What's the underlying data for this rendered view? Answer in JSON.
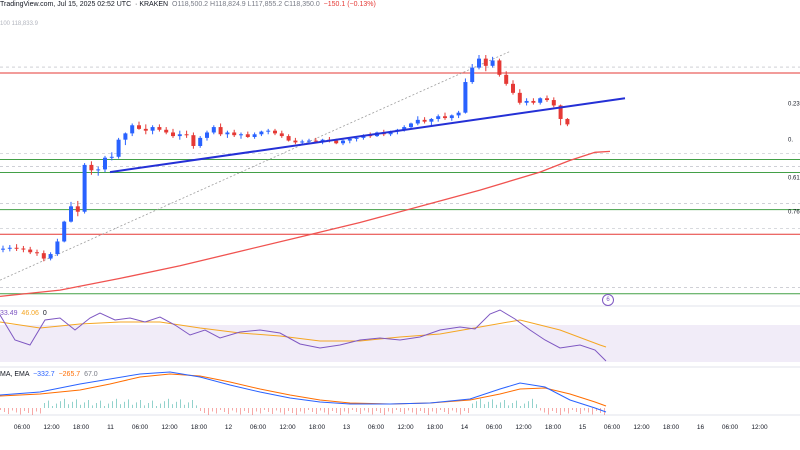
{
  "header": {
    "source": "TradingView.com, Jul 15, 2025 02:52 UTC",
    "exchange": "KRAKEN",
    "ohlc": "O118,500.2  H118,824.9  L117,855.2  C118,350.0",
    "change": "−150.1 (−0.13%)",
    "watermark": "100  118,833.9"
  },
  "rsi_header": {
    "values": [
      "33.49",
      "46.06"
    ],
    "flag": "0"
  },
  "macd_header": {
    "label": "MA, EMA",
    "values": [
      "−332.7",
      "−265.7",
      "67.0"
    ]
  },
  "fib_labels": [
    "0.23",
    "0.",
    "0.61",
    "0.76"
  ],
  "event_icon_label": "6",
  "colors": {
    "up": "#2962ff",
    "down": "#e53935",
    "trendline": "#2430d6",
    "ma": "#f05350",
    "rsi": "#7e57c2",
    "rsi_signal": "#f5a623",
    "macd": "#2962ff",
    "signal": "#ff6d00",
    "fib_green": "#43a047",
    "fib_red": "#e53935"
  },
  "chart_data": {
    "type": "candlestick",
    "time_labels": [
      "06:00",
      "12:00",
      "18:00",
      "11",
      "06:00",
      "12:00",
      "18:00",
      "12",
      "06:00",
      "12:00",
      "18:00",
      "13",
      "06:00",
      "12:00",
      "18:00",
      "14",
      "06:00",
      "12:00",
      "18:00",
      "15",
      "06:00",
      "12:00",
      "18:00",
      "16",
      "06:00",
      "12:00"
    ],
    "ylim": [
      109500,
      124600
    ],
    "fib_levels": [
      {
        "price": 122100,
        "color": "red"
      },
      {
        "price": 117300,
        "color": "green"
      },
      {
        "price": 116580,
        "color": "green"
      },
      {
        "price": 114520,
        "color": "green"
      },
      {
        "price": 113150,
        "color": "red"
      },
      {
        "price": 109850,
        "color": "green"
      }
    ],
    "candles": [
      [
        112320,
        112520,
        112150,
        112350
      ],
      [
        112350,
        112550,
        112200,
        112400
      ],
      [
        112400,
        112600,
        112220,
        112360
      ],
      [
        112360,
        112500,
        112150,
        112300
      ],
      [
        112300,
        112450,
        112050,
        112150
      ],
      [
        112150,
        112300,
        111950,
        112100
      ],
      [
        112100,
        112250,
        111650,
        111800
      ],
      [
        111800,
        112150,
        111700,
        112050
      ],
      [
        112050,
        112900,
        111950,
        112750
      ],
      [
        112750,
        113900,
        112700,
        113850
      ],
      [
        113850,
        114950,
        113800,
        114700
      ],
      [
        114700,
        115000,
        114150,
        114400
      ],
      [
        114400,
        117100,
        114300,
        117000
      ],
      [
        117000,
        117200,
        116450,
        116700
      ],
      [
        116700,
        116900,
        116400,
        116750
      ],
      [
        116750,
        117500,
        116600,
        117400
      ],
      [
        117400,
        117700,
        117250,
        117450
      ],
      [
        117450,
        118500,
        117350,
        118400
      ],
      [
        118400,
        118800,
        118100,
        118750
      ],
      [
        118750,
        119300,
        118600,
        119200
      ],
      [
        119200,
        119400,
        118950,
        119000
      ],
      [
        119000,
        119250,
        118700,
        118900
      ],
      [
        118900,
        119200,
        118700,
        119100
      ],
      [
        119100,
        119250,
        118850,
        118950
      ],
      [
        118950,
        119100,
        118700,
        118800
      ],
      [
        118800,
        119000,
        118500,
        118600
      ],
      [
        118600,
        118900,
        118400,
        118700
      ],
      [
        118700,
        118900,
        118500,
        118650
      ],
      [
        118650,
        118800,
        117900,
        118050
      ],
      [
        118050,
        118600,
        117950,
        118500
      ],
      [
        118500,
        118900,
        118350,
        118800
      ],
      [
        118800,
        119200,
        118700,
        119100
      ],
      [
        119100,
        119300,
        118600,
        118700
      ],
      [
        118700,
        118900,
        118500,
        118800
      ],
      [
        118800,
        118950,
        118550,
        118650
      ],
      [
        118650,
        118800,
        118450,
        118700
      ],
      [
        118700,
        118850,
        118500,
        118550
      ],
      [
        118550,
        118800,
        118450,
        118700
      ],
      [
        118700,
        118900,
        118600,
        118850
      ],
      [
        118850,
        119000,
        118700,
        118900
      ],
      [
        118900,
        119000,
        118650,
        118750
      ],
      [
        118750,
        118900,
        118500,
        118600
      ],
      [
        118600,
        118700,
        118300,
        118350
      ],
      [
        118350,
        118500,
        118150,
        118250
      ],
      [
        118250,
        118400,
        118100,
        118300
      ],
      [
        118300,
        118450,
        118150,
        118350
      ],
      [
        118350,
        118500,
        118200,
        118300
      ],
      [
        118300,
        118450,
        118150,
        118400
      ],
      [
        118400,
        118550,
        118250,
        118350
      ],
      [
        118350,
        118450,
        118150,
        118200
      ],
      [
        118200,
        118400,
        118100,
        118350
      ],
      [
        118350,
        118500,
        118200,
        118450
      ],
      [
        118450,
        118600,
        118300,
        118500
      ],
      [
        118500,
        118700,
        118400,
        118650
      ],
      [
        118650,
        118800,
        118500,
        118600
      ],
      [
        118600,
        118850,
        118550,
        118800
      ],
      [
        118800,
        118950,
        118600,
        118700
      ],
      [
        118700,
        118900,
        118600,
        118850
      ],
      [
        118850,
        119000,
        118700,
        118950
      ],
      [
        118950,
        119200,
        118850,
        119100
      ],
      [
        119100,
        119350,
        119000,
        119300
      ],
      [
        119300,
        119700,
        119200,
        119500
      ],
      [
        119500,
        119650,
        119300,
        119400
      ],
      [
        119400,
        119600,
        119200,
        119550
      ],
      [
        119550,
        119800,
        119400,
        119700
      ],
      [
        119700,
        119900,
        119500,
        119600
      ],
      [
        119600,
        119800,
        119450,
        119750
      ],
      [
        119750,
        120000,
        119600,
        119900
      ],
      [
        119900,
        121800,
        119850,
        121600
      ],
      [
        121600,
        122600,
        121500,
        122400
      ],
      [
        122400,
        123100,
        122300,
        122900
      ],
      [
        122900,
        123100,
        122200,
        122500
      ],
      [
        122500,
        123000,
        122400,
        122800
      ],
      [
        122800,
        122900,
        121900,
        122000
      ],
      [
        122000,
        122200,
        121400,
        121500
      ],
      [
        121500,
        121700,
        120900,
        121000
      ],
      [
        121000,
        121200,
        120350,
        120450
      ],
      [
        120450,
        120700,
        120300,
        120550
      ],
      [
        120550,
        120700,
        120350,
        120450
      ],
      [
        120450,
        120750,
        120350,
        120700
      ],
      [
        120700,
        120850,
        120500,
        120600
      ],
      [
        120600,
        120750,
        120200,
        120300
      ],
      [
        120300,
        120350,
        119200,
        119550
      ],
      [
        119550,
        119600,
        119150,
        119250
      ]
    ],
    "ma": [
      [
        0,
        109700
      ],
      [
        60,
        110050
      ],
      [
        120,
        110700
      ],
      [
        180,
        111400
      ],
      [
        240,
        112200
      ],
      [
        300,
        113000
      ],
      [
        360,
        113800
      ],
      [
        420,
        114700
      ],
      [
        480,
        115600
      ],
      [
        540,
        116600
      ],
      [
        570,
        117250
      ],
      [
        595,
        117700
      ],
      [
        610,
        117750
      ]
    ],
    "trendline_support": [
      [
        110,
        116600
      ],
      [
        625,
        120700
      ]
    ],
    "trendline_fib": [
      [
        0,
        110600
      ],
      [
        510,
        123300
      ]
    ],
    "rsi": [
      [
        0,
        315
      ],
      [
        15,
        340
      ],
      [
        30,
        345
      ],
      [
        45,
        320
      ],
      [
        60,
        318
      ],
      [
        75,
        330
      ],
      [
        90,
        318
      ],
      [
        100,
        313
      ],
      [
        115,
        320
      ],
      [
        130,
        318
      ],
      [
        145,
        322
      ],
      [
        160,
        317
      ],
      [
        175,
        325
      ],
      [
        190,
        335
      ],
      [
        205,
        330
      ],
      [
        220,
        338
      ],
      [
        240,
        332
      ],
      [
        260,
        330
      ],
      [
        280,
        333
      ],
      [
        300,
        344
      ],
      [
        320,
        348
      ],
      [
        340,
        345
      ],
      [
        360,
        340
      ],
      [
        380,
        338
      ],
      [
        400,
        340
      ],
      [
        420,
        337
      ],
      [
        440,
        330
      ],
      [
        460,
        327
      ],
      [
        475,
        329
      ],
      [
        490,
        314
      ],
      [
        500,
        310
      ],
      [
        515,
        319
      ],
      [
        530,
        330
      ],
      [
        545,
        340
      ],
      [
        560,
        348
      ],
      [
        580,
        345
      ],
      [
        595,
        350
      ],
      [
        606,
        361
      ]
    ],
    "rsi_signal": [
      [
        0,
        322
      ],
      [
        40,
        328
      ],
      [
        80,
        324
      ],
      [
        120,
        322
      ],
      [
        160,
        322
      ],
      [
        200,
        328
      ],
      [
        240,
        333
      ],
      [
        280,
        336
      ],
      [
        320,
        341
      ],
      [
        360,
        341
      ],
      [
        400,
        337
      ],
      [
        440,
        334
      ],
      [
        480,
        327
      ],
      [
        520,
        320
      ],
      [
        560,
        330
      ],
      [
        600,
        345
      ],
      [
        606,
        347
      ]
    ],
    "macd_line": [
      [
        0,
        395
      ],
      [
        40,
        392
      ],
      [
        80,
        384
      ],
      [
        110,
        379
      ],
      [
        140,
        374
      ],
      [
        170,
        372
      ],
      [
        200,
        377
      ],
      [
        230,
        385
      ],
      [
        260,
        392
      ],
      [
        290,
        398
      ],
      [
        320,
        402
      ],
      [
        350,
        404
      ],
      [
        390,
        404
      ],
      [
        430,
        403
      ],
      [
        470,
        399
      ],
      [
        500,
        389
      ],
      [
        520,
        383
      ],
      [
        545,
        387
      ],
      [
        570,
        400
      ],
      [
        595,
        408
      ],
      [
        606,
        412
      ]
    ],
    "macd_signal": [
      [
        0,
        396
      ],
      [
        40,
        394
      ],
      [
        80,
        390
      ],
      [
        110,
        384
      ],
      [
        140,
        377
      ],
      [
        170,
        374
      ],
      [
        200,
        376
      ],
      [
        230,
        382
      ],
      [
        260,
        389
      ],
      [
        290,
        395
      ],
      [
        320,
        400
      ],
      [
        350,
        403
      ],
      [
        390,
        404
      ],
      [
        430,
        403
      ],
      [
        470,
        400
      ],
      [
        500,
        394
      ],
      [
        520,
        389
      ],
      [
        545,
        388
      ],
      [
        570,
        394
      ],
      [
        595,
        402
      ],
      [
        606,
        406
      ]
    ]
  }
}
